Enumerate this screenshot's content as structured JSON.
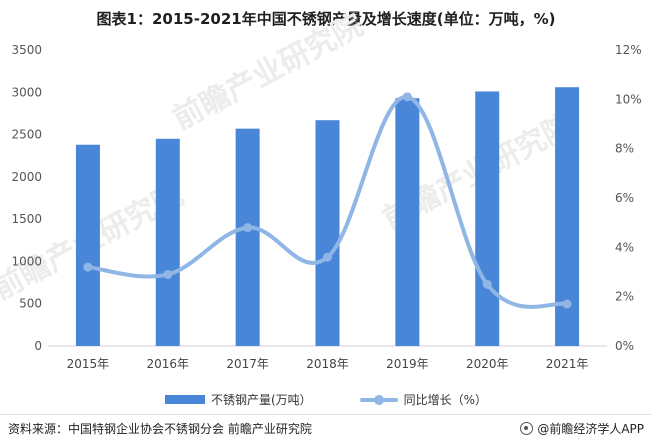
{
  "title": "图表1：2015-2021年中国不锈钢产量及增长速度(单位：万吨，%)",
  "watermark": "前瞻产业研究院",
  "chart_data": {
    "type": "bar",
    "categories": [
      "2015年",
      "2016年",
      "2017年",
      "2018年",
      "2019年",
      "2020年",
      "2021年"
    ],
    "series": [
      {
        "name": "不锈钢产量(万吨）",
        "type": "bar",
        "axis": "left",
        "values": [
          2380,
          2450,
          2570,
          2670,
          2930,
          3010,
          3060
        ],
        "color": "#4a86d8"
      },
      {
        "name": "同比增长（%）",
        "type": "line",
        "axis": "right",
        "values": [
          3.2,
          2.9,
          4.8,
          3.6,
          10.1,
          2.5,
          1.7
        ],
        "color": "#8fb6e4"
      }
    ],
    "y_left": {
      "min": 0,
      "max": 3500,
      "ticks": [
        "0",
        "500",
        "1000",
        "1500",
        "2000",
        "2500",
        "3000",
        "3500"
      ]
    },
    "y_right": {
      "min": 0,
      "max": 12,
      "ticks": [
        "0%",
        "2%",
        "4%",
        "6%",
        "8%",
        "10%",
        "12%"
      ]
    },
    "grid": false,
    "legend_position": "bottom"
  },
  "legend": {
    "bar_label": "不锈钢产量(万吨）",
    "line_label": "同比增长（%）"
  },
  "footer": {
    "source": "资料来源：中国特钢企业协会不锈钢分会 前瞻产业研究院",
    "brand": "@前瞻经济学人APP"
  }
}
